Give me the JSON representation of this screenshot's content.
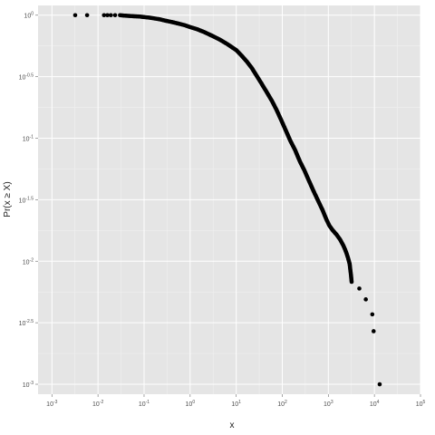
{
  "chart_data": {
    "type": "scatter",
    "xlabel": "x",
    "ylabel": "Pr(x ≥ X)",
    "x_scale": "log10",
    "y_scale": "log10",
    "xlim": [
      0.0005,
      100000
    ],
    "ylim": [
      0.00083,
      1.2
    ],
    "grid": true,
    "legend": "none",
    "x_ticks": [
      {
        "base": "10",
        "exp": "-3"
      },
      {
        "base": "10",
        "exp": "-2"
      },
      {
        "base": "10",
        "exp": "-1"
      },
      {
        "base": "10",
        "exp": "0"
      },
      {
        "base": "10",
        "exp": "1"
      },
      {
        "base": "10",
        "exp": "2"
      },
      {
        "base": "10",
        "exp": "3"
      },
      {
        "base": "10",
        "exp": "4"
      },
      {
        "base": "10",
        "exp": "5"
      }
    ],
    "y_ticks": [
      {
        "base": "10",
        "exp": "0"
      },
      {
        "base": "10",
        "exp": "-0.5"
      },
      {
        "base": "10",
        "exp": "-1"
      },
      {
        "base": "10",
        "exp": "-1.5"
      },
      {
        "base": "10",
        "exp": "-2"
      },
      {
        "base": "10",
        "exp": "-2.5"
      },
      {
        "base": "10",
        "exp": "-3"
      }
    ],
    "points": [
      [
        0.0032,
        1.0
      ],
      [
        0.0058,
        1.0
      ],
      [
        0.0135,
        1.0
      ],
      [
        0.016,
        1.0
      ],
      [
        0.019,
        1.0
      ],
      [
        0.0235,
        1.0
      ],
      [
        0.03,
        1.0
      ],
      [
        0.034,
        0.995
      ],
      [
        0.04,
        0.99
      ],
      [
        0.05,
        0.985
      ],
      [
        0.06,
        0.98
      ],
      [
        0.08,
        0.975
      ],
      [
        0.1,
        0.965
      ],
      [
        0.13,
        0.955
      ],
      [
        0.17,
        0.94
      ],
      [
        0.22,
        0.925
      ],
      [
        0.3,
        0.9
      ],
      [
        0.4,
        0.88
      ],
      [
        0.55,
        0.855
      ],
      [
        0.75,
        0.83
      ],
      [
        1.0,
        0.8
      ],
      [
        1.4,
        0.77
      ],
      [
        2.0,
        0.73
      ],
      [
        3.0,
        0.68
      ],
      [
        4.5,
        0.63
      ],
      [
        6.5,
        0.58
      ],
      [
        10,
        0.52
      ],
      [
        13,
        0.47
      ],
      [
        17,
        0.42
      ],
      [
        22,
        0.37
      ],
      [
        28,
        0.32
      ],
      [
        35,
        0.28
      ],
      [
        45,
        0.24
      ],
      [
        60,
        0.2
      ],
      [
        75,
        0.17
      ],
      [
        95,
        0.14
      ],
      [
        120,
        0.115
      ],
      [
        150,
        0.095
      ],
      [
        190,
        0.08
      ],
      [
        240,
        0.065
      ],
      [
        300,
        0.055
      ],
      [
        380,
        0.045
      ],
      [
        480,
        0.037
      ],
      [
        600,
        0.031
      ],
      [
        750,
        0.026
      ],
      [
        900,
        0.022
      ],
      [
        1050,
        0.0195
      ],
      [
        1250,
        0.0178
      ],
      [
        1500,
        0.0165
      ],
      [
        1800,
        0.015
      ],
      [
        2100,
        0.0135
      ],
      [
        2300,
        0.0125
      ],
      [
        2500,
        0.0115
      ],
      [
        2700,
        0.0105
      ],
      [
        2900,
        0.0095
      ],
      [
        3000,
        0.0085
      ],
      [
        3100,
        0.0077
      ],
      [
        3200,
        0.0068
      ],
      [
        4700,
        0.006
      ],
      [
        6500,
        0.0049
      ],
      [
        9000,
        0.0037
      ],
      [
        9600,
        0.0027
      ],
      [
        13000,
        0.001
      ]
    ]
  }
}
